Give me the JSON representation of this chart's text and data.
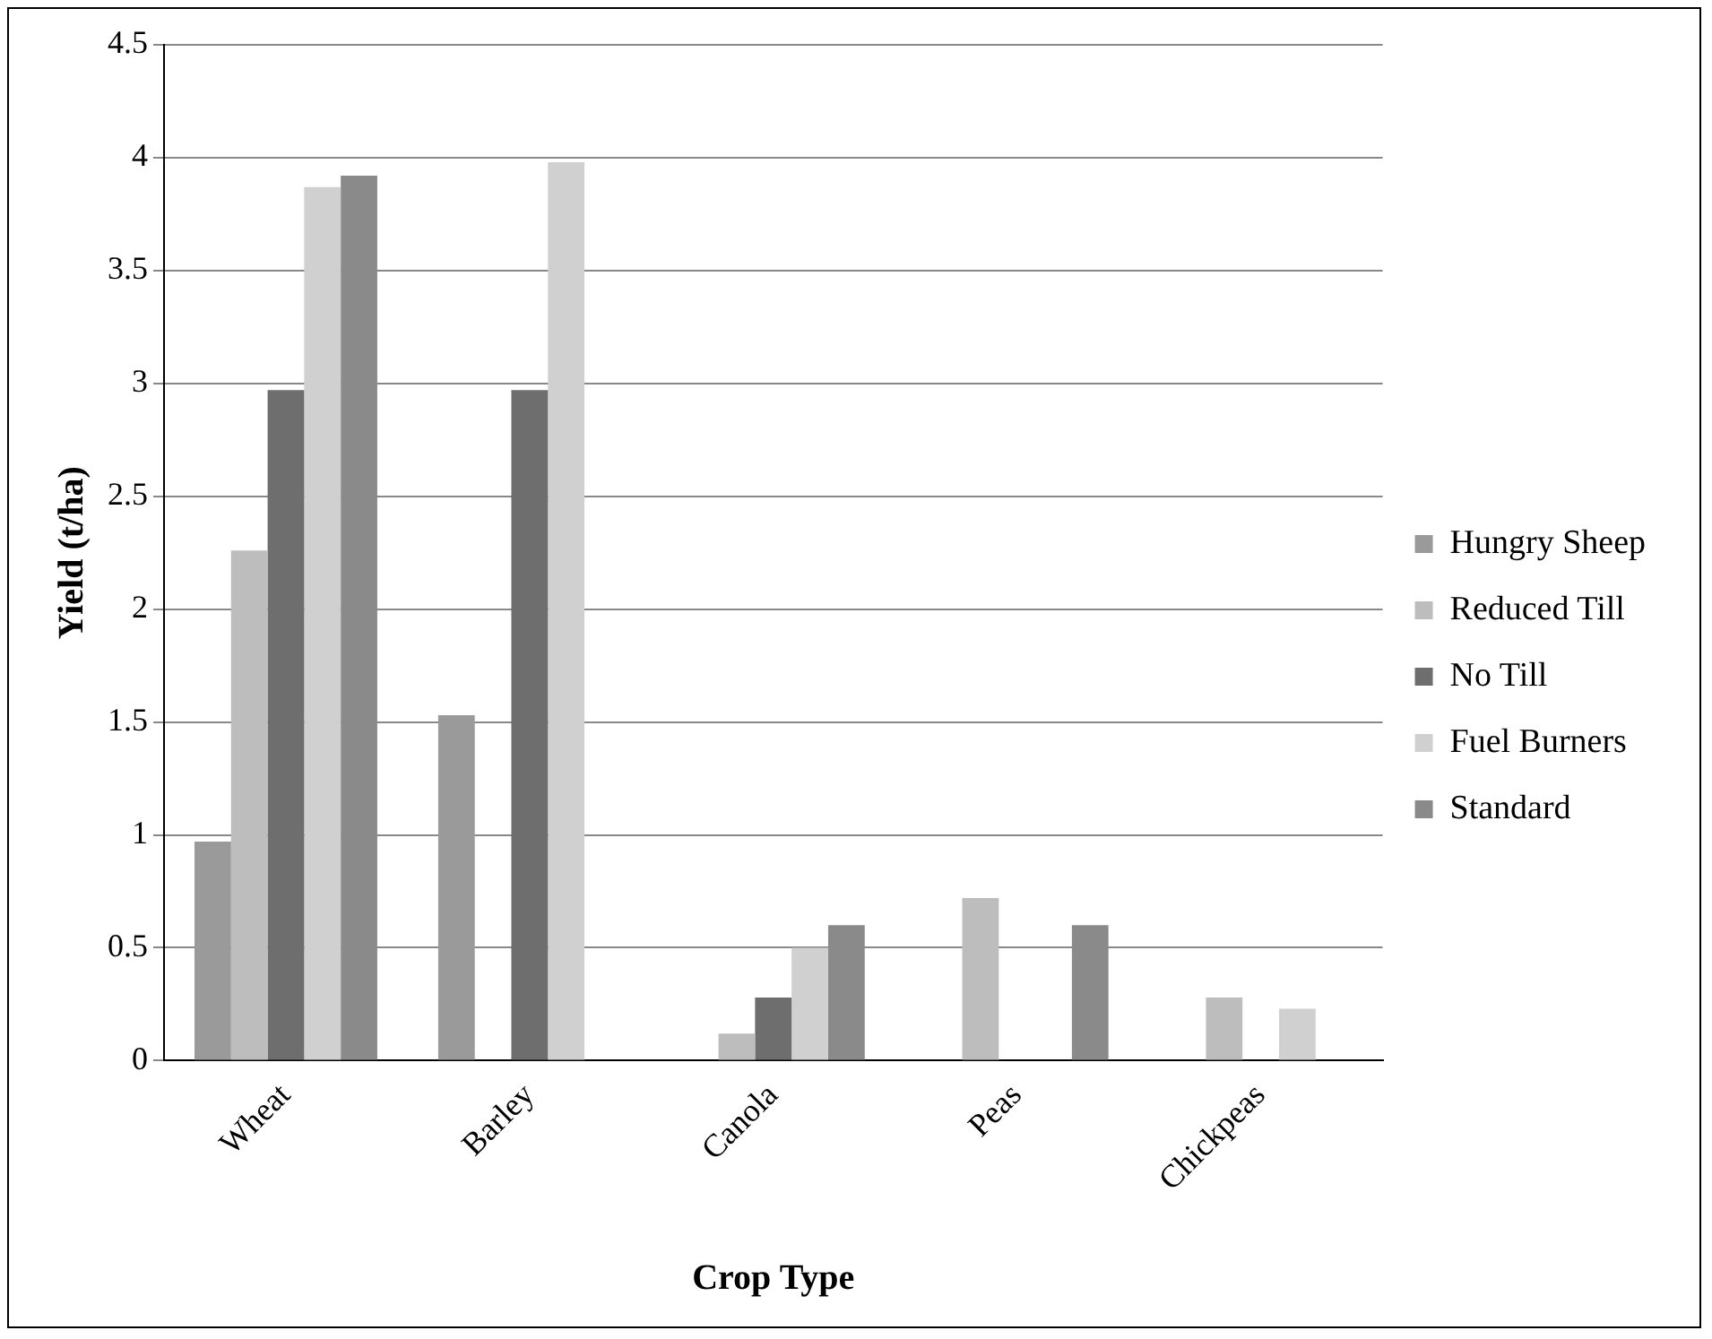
{
  "chart_data": {
    "type": "bar",
    "xlabel": "Crop Type",
    "ylabel": "Yield (t/ha)",
    "categories": [
      "Wheat",
      "Barley",
      "Canola",
      "Peas",
      "Chickpeas"
    ],
    "series": [
      {
        "name": "Hungry Sheep",
        "color": "#9a9a9a",
        "values": [
          0.97,
          1.53,
          null,
          null,
          null
        ]
      },
      {
        "name": "Reduced Till",
        "color": "#bdbdbd",
        "values": [
          2.26,
          null,
          0.12,
          0.72,
          0.28
        ]
      },
      {
        "name": "No Till",
        "color": "#6e6e6e",
        "values": [
          2.97,
          2.97,
          0.28,
          null,
          null
        ]
      },
      {
        "name": "Fuel Burners",
        "color": "#d0d0d0",
        "values": [
          3.87,
          3.98,
          0.5,
          null,
          0.23
        ]
      },
      {
        "name": "Standard",
        "color": "#8a8a8a",
        "values": [
          3.92,
          null,
          0.6,
          0.6,
          null
        ]
      }
    ],
    "ylim": [
      0,
      4.5
    ],
    "yticks": [
      0,
      0.5,
      1,
      1.5,
      2,
      2.5,
      3,
      3.5,
      4,
      4.5
    ],
    "grid": "y",
    "legend": "right"
  }
}
